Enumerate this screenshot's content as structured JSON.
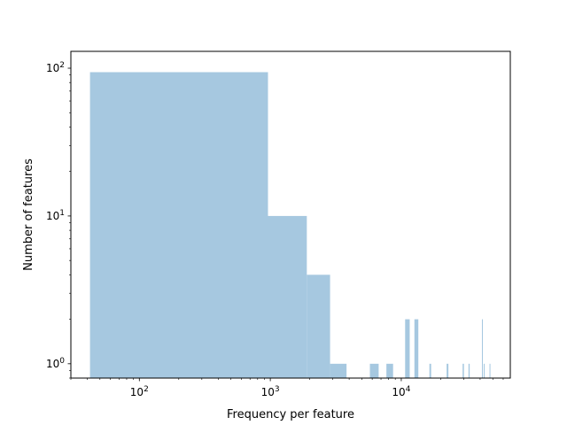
{
  "chart_data": {
    "type": "bar",
    "subtype": "histogram",
    "title": "",
    "xlabel": "Frequency per feature",
    "ylabel": "Number of features",
    "xscale": "log",
    "yscale": "log",
    "xlim": [
      30,
      68000
    ],
    "ylim": [
      0.8,
      130
    ],
    "grid": false,
    "legend": "none",
    "bar_color": "#a6c8e0",
    "x_ticks": [
      {
        "value": 100,
        "base": "10",
        "exp": "2"
      },
      {
        "value": 1000,
        "base": "10",
        "exp": "3"
      },
      {
        "value": 10000,
        "base": "10",
        "exp": "4"
      }
    ],
    "y_ticks": [
      {
        "value": 1,
        "base": "10",
        "exp": "0"
      },
      {
        "value": 10,
        "base": "10",
        "exp": "1"
      },
      {
        "value": 100,
        "base": "10",
        "exp": "2"
      }
    ],
    "bins": [
      {
        "x0": 42,
        "x1": 960,
        "count": 94
      },
      {
        "x0": 960,
        "x1": 1900,
        "count": 10
      },
      {
        "x0": 1900,
        "x1": 2860,
        "count": 4
      },
      {
        "x0": 2860,
        "x1": 3820,
        "count": 1
      },
      {
        "x0": 5760,
        "x1": 6720,
        "count": 1
      },
      {
        "x0": 7700,
        "x1": 8660,
        "count": 1
      },
      {
        "x0": 10700,
        "x1": 11600,
        "count": 2
      },
      {
        "x0": 12600,
        "x1": 13500,
        "count": 2
      },
      {
        "x0": 16400,
        "x1": 16900,
        "count": 1
      },
      {
        "x0": 22200,
        "x1": 22900,
        "count": 1
      },
      {
        "x0": 29400,
        "x1": 30100,
        "count": 1
      },
      {
        "x0": 32600,
        "x1": 33300,
        "count": 1
      },
      {
        "x0": 41300,
        "x1": 41800,
        "count": 2
      },
      {
        "x0": 42600,
        "x1": 43300,
        "count": 1
      },
      {
        "x0": 47200,
        "x1": 47900,
        "count": 1
      }
    ]
  }
}
